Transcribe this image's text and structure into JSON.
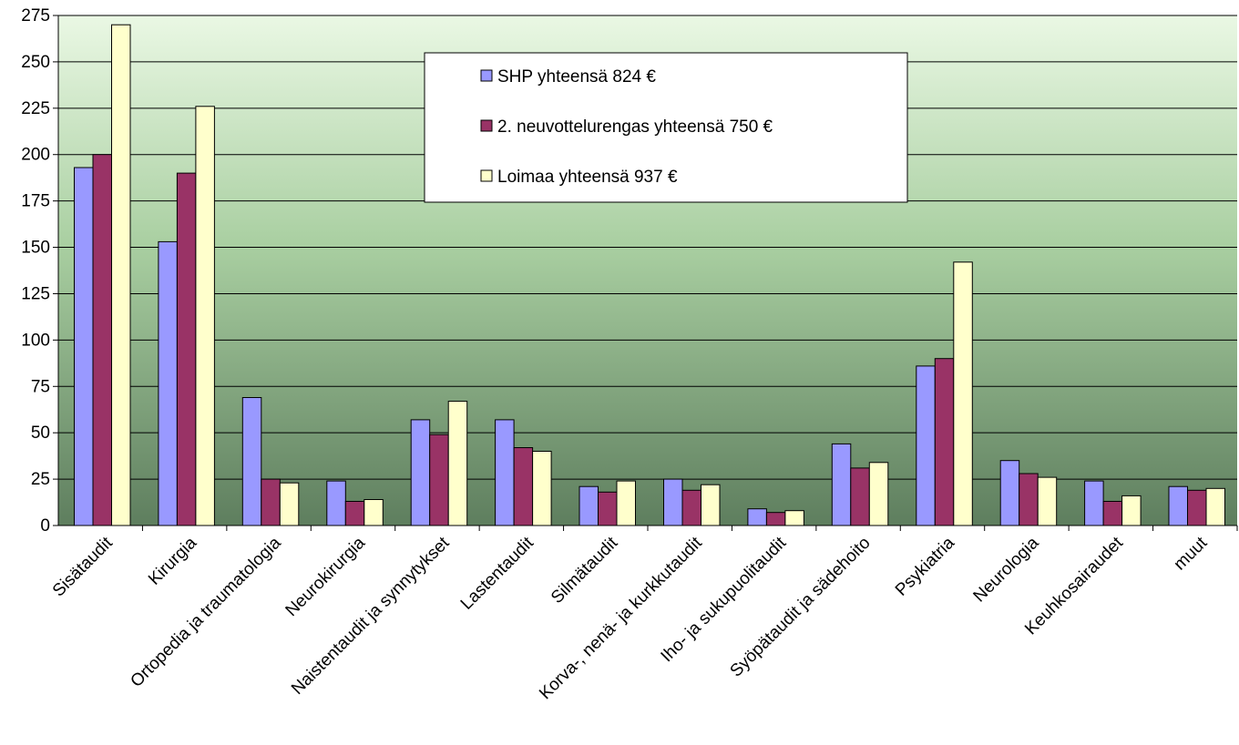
{
  "chart_data": {
    "type": "bar",
    "title": "",
    "xlabel": "",
    "ylabel": "",
    "ylim": [
      0,
      275
    ],
    "yticks": [
      0,
      25,
      50,
      75,
      100,
      125,
      150,
      175,
      200,
      225,
      250,
      275
    ],
    "grid": true,
    "legend_position": "top-center",
    "categories": [
      "Sisätaudit",
      "Kirurgia",
      "Ortopedia ja traumatologia",
      "Neurokirurgia",
      "Naistentaudit ja synnytykset",
      "Lastentaudit",
      "Silmätaudit",
      "Korva-, nenä- ja kurkkutaudit",
      "Iho- ja sukupuolitaudit",
      "Syöpätaudit ja sädehoito",
      "Psykiatria",
      "Neurologia",
      "Keuhkosairaudet",
      "muut"
    ],
    "series": [
      {
        "name": "SHP yhteensä 824 €",
        "color": "#9999ff",
        "values": [
          193,
          153,
          69,
          24,
          57,
          57,
          21,
          25,
          9,
          44,
          86,
          35,
          24,
          21
        ]
      },
      {
        "name": "2. neuvottelurengas yhteensä 750 €",
        "color": "#993366",
        "values": [
          200,
          190,
          25,
          13,
          49,
          42,
          18,
          19,
          7,
          31,
          90,
          28,
          13,
          19
        ]
      },
      {
        "name": "Loimaa yhteensä 937 €",
        "color": "#ffffcc",
        "values": [
          270,
          226,
          23,
          14,
          67,
          40,
          24,
          22,
          8,
          34,
          142,
          26,
          16,
          20
        ]
      }
    ]
  }
}
